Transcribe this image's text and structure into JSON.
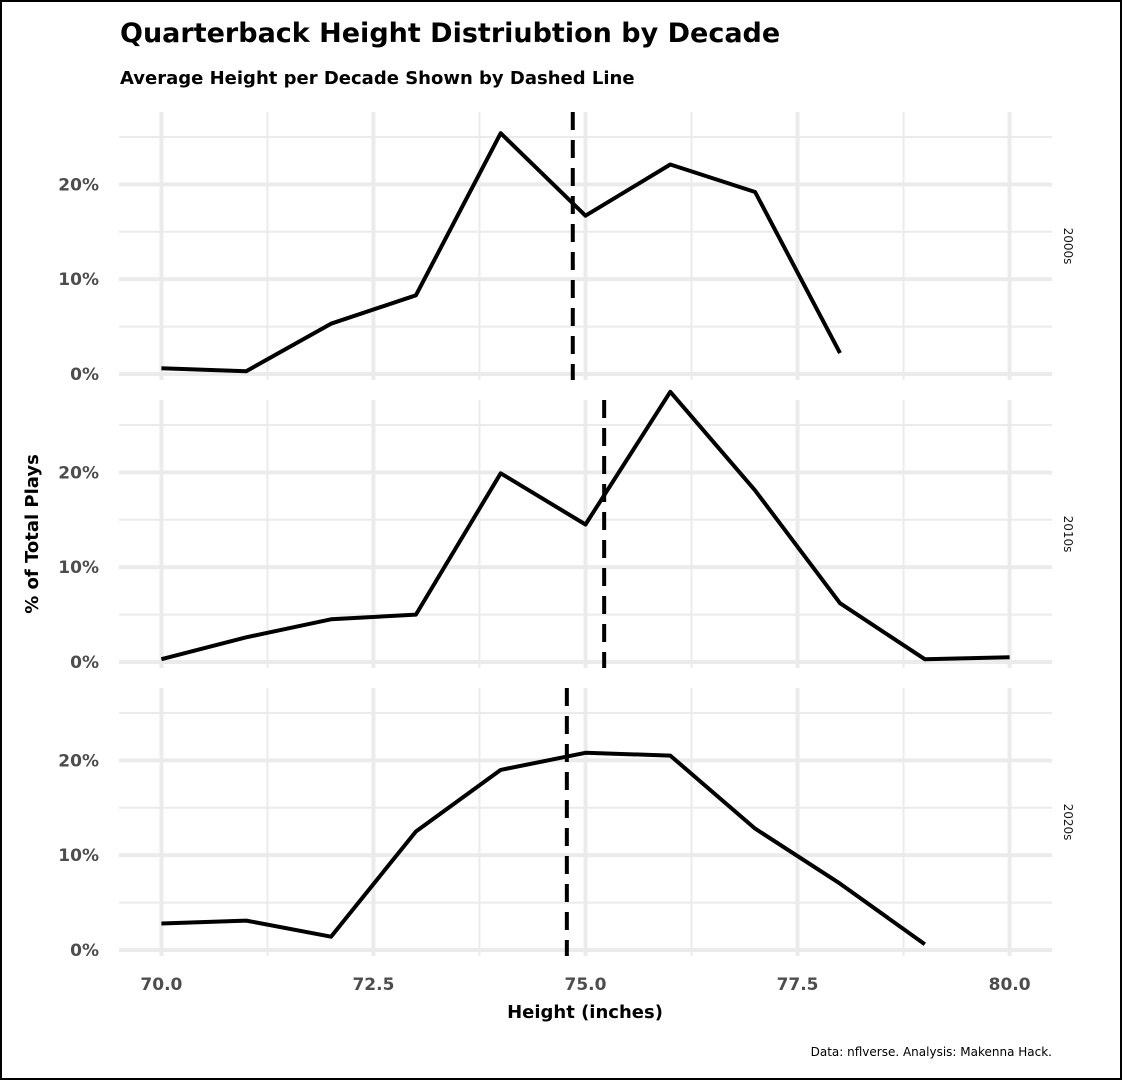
{
  "header": {
    "title": "Quarterback Height Distriubtion by Decade",
    "subtitle": "Average Height per Decade Shown by Dashed Line"
  },
  "caption": "Data: nflverse. Analysis: Makenna Hack.",
  "colors": {
    "line": "#000000",
    "grid": "#ebebeb",
    "tick_text": "#4d4d4d",
    "frame": "#000000"
  },
  "chart_data": {
    "type": "line",
    "xlabel": "Height (inches)",
    "ylabel": "% of Total Plays",
    "xlim": [
      69.5,
      80.5
    ],
    "ylim": [
      0,
      0.27
    ],
    "x_ticks": [
      70,
      72.5,
      75,
      77.5,
      80
    ],
    "x_tick_labels": [
      "70.0",
      "72.5",
      "75.0",
      "77.5",
      "80.0"
    ],
    "y_ticks": [
      0,
      0.1,
      0.2
    ],
    "y_tick_labels": [
      "0%",
      "10%",
      "20%"
    ],
    "grid": true,
    "facet_position": "right",
    "panels": [
      {
        "facet": "2000s",
        "x": [
          70,
          71,
          72,
          73,
          74,
          75,
          76,
          77,
          78
        ],
        "y": [
          0.006,
          0.003,
          0.053,
          0.083,
          0.254,
          0.167,
          0.221,
          0.192,
          0.022
        ],
        "mean_height": 74.85
      },
      {
        "facet": "2010s",
        "x": [
          70,
          71,
          72,
          73,
          74,
          75,
          76,
          77,
          78,
          79,
          80
        ],
        "y": [
          0.003,
          0.026,
          0.045,
          0.05,
          0.199,
          0.145,
          0.285,
          0.181,
          0.062,
          0.003,
          0.005
        ],
        "mean_height": 75.22
      },
      {
        "facet": "2020s",
        "x": [
          70,
          71,
          72,
          73,
          74,
          75,
          76,
          77,
          78,
          79
        ],
        "y": [
          0.028,
          0.031,
          0.014,
          0.125,
          0.19,
          0.208,
          0.205,
          0.128,
          0.07,
          0.006
        ],
        "mean_height": 74.78
      }
    ]
  }
}
